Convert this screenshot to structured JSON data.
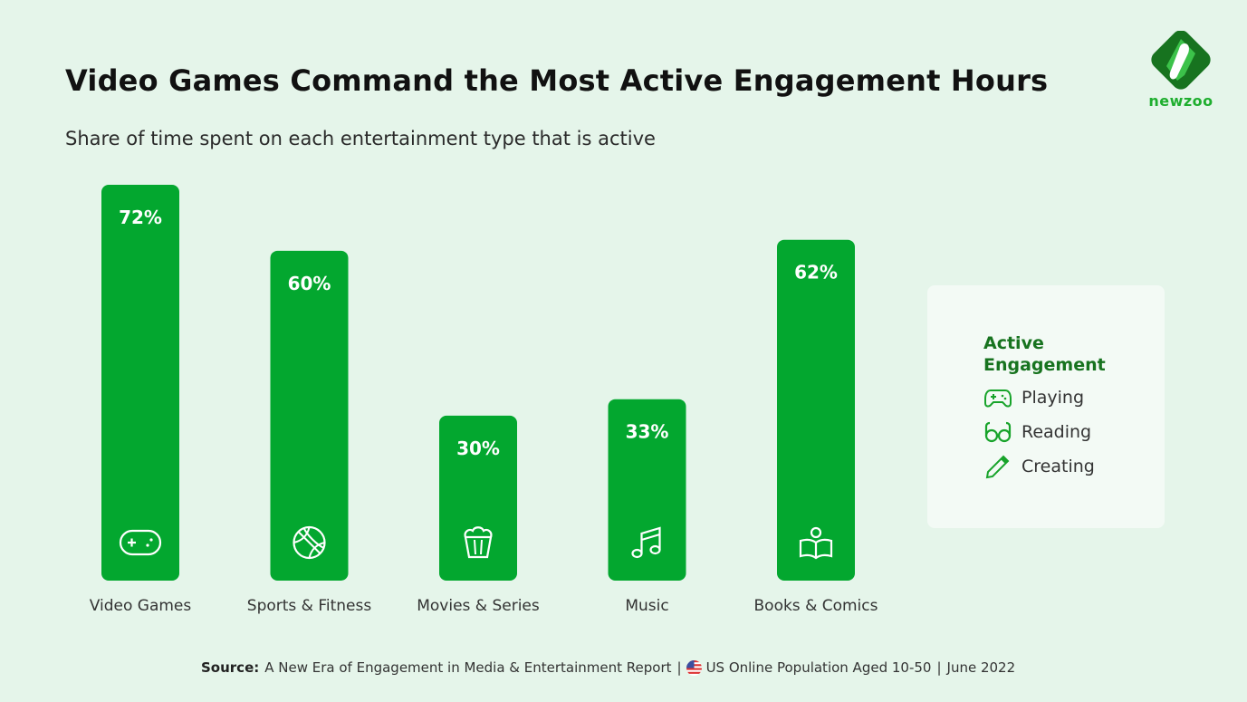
{
  "header": {
    "title": "Video Games Command the Most Active Engagement Hours",
    "subtitle": "Share of time spent on each entertainment type that is active"
  },
  "brand": {
    "name": "newzoo",
    "logo_icon": "newzoo-diamond-logo",
    "primary_color": "#03a72f",
    "dark_color": "#17731f"
  },
  "chart_data": {
    "type": "bar",
    "title": "Video Games Command the Most Active Engagement Hours",
    "subtitle": "Share of time spent on each entertainment type that is active",
    "categories": [
      "Video Games",
      "Sports & Fitness",
      "Movies & Series",
      "Music",
      "Books & Comics"
    ],
    "values": [
      72,
      60,
      30,
      33,
      62
    ],
    "value_labels": [
      "72%",
      "60%",
      "30%",
      "33%",
      "62%"
    ],
    "icons": [
      "gamepad-icon",
      "basketball-icon",
      "popcorn-icon",
      "music-note-icon",
      "reader-book-icon"
    ],
    "unit": "%",
    "ylim": [
      0,
      72
    ],
    "grid": false,
    "xlabel": "",
    "ylabel": ""
  },
  "legend": {
    "title_line1": "Active",
    "title_line2": "Engagement",
    "items": [
      {
        "label": "Playing",
        "icon": "gamepad-icon"
      },
      {
        "label": "Reading",
        "icon": "glasses-icon"
      },
      {
        "label": "Creating",
        "icon": "pencil-icon"
      }
    ],
    "placement": "right"
  },
  "footer": {
    "source_label": "Source:",
    "report": "A New Era of Engagement in Media & Entertainment Report",
    "separator": "|",
    "flag_icon": "us-flag-icon",
    "population": "US Online Population Aged 10-50",
    "date": "June 2022"
  }
}
